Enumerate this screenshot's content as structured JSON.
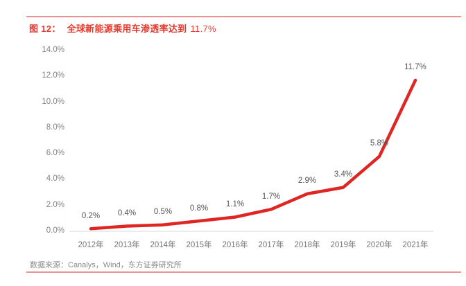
{
  "figure": {
    "label": "图 12：",
    "title": "全球新能源乘用车渗透率达到",
    "highlight_value": "11.7%"
  },
  "source_note": "数据来源：Canalys，Wind，东方证券研究所",
  "colors": {
    "title_red": "#e23a2e",
    "series_line_red": "#e02622",
    "rule_salmon": "#e8938d",
    "axis_line_gray": "#d9d9d9",
    "tick_text_gray": "#818181",
    "data_label_gray": "#555555"
  },
  "chart_data": {
    "type": "line",
    "title": "全球新能源乘用车渗透率达到 11.7%",
    "categories": [
      "2012年",
      "2013年",
      "2014年",
      "2015年",
      "2016年",
      "2017年",
      "2018年",
      "2019年",
      "2020年",
      "2021年"
    ],
    "values": [
      0.2,
      0.4,
      0.5,
      0.8,
      1.1,
      1.7,
      2.9,
      3.4,
      5.8,
      11.7
    ],
    "data_labels": [
      "0.2%",
      "0.4%",
      "0.5%",
      "0.8%",
      "1.1%",
      "1.7%",
      "2.9%",
      "3.4%",
      "5.8%",
      "11.7%"
    ],
    "y_ticks": [
      "0.0%",
      "2.0%",
      "4.0%",
      "6.0%",
      "8.0%",
      "10.0%",
      "12.0%",
      "14.0%"
    ],
    "xlabel": "",
    "ylabel": "",
    "ylim": [
      0,
      14
    ],
    "y_tick_step": 2,
    "grid": false,
    "legend": false,
    "line_color": "#e02622"
  }
}
